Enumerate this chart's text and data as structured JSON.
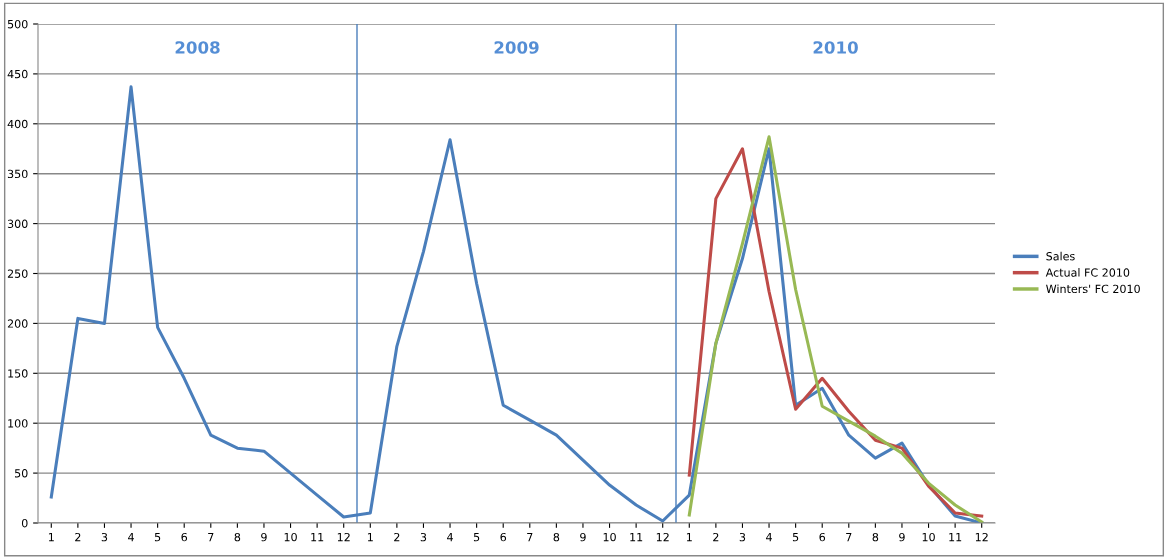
{
  "chart_data": {
    "type": "line",
    "categories": [
      "1",
      "2",
      "3",
      "4",
      "5",
      "6",
      "7",
      "8",
      "9",
      "10",
      "11",
      "12",
      "1",
      "2",
      "3",
      "4",
      "5",
      "6",
      "7",
      "8",
      "9",
      "10",
      "11",
      "12",
      "1",
      "2",
      "3",
      "4",
      "5",
      "6",
      "7",
      "8",
      "9",
      "10",
      "11",
      "12"
    ],
    "ylim": [
      0,
      500
    ],
    "yticks": [
      0,
      50,
      100,
      150,
      200,
      250,
      300,
      350,
      400,
      450,
      500
    ],
    "grid": "y",
    "legend": "right",
    "line_style": "solid",
    "marker": "none",
    "annotations": [
      "2008",
      "2009",
      "2010"
    ],
    "series": [
      {
        "name": "Sales",
        "color": "#4a7ebb",
        "values": [
          26,
          205,
          200,
          437,
          196,
          145,
          88,
          75,
          72,
          50,
          28,
          6,
          10,
          177,
          272,
          384,
          240,
          118,
          103,
          88,
          63,
          38,
          18,
          2,
          28,
          180,
          265,
          375,
          118,
          135,
          88,
          65,
          80,
          38,
          7,
          0
        ]
      },
      {
        "name": "Actual FC 2010",
        "color": "#be4b48",
        "values": [
          null,
          null,
          null,
          null,
          null,
          null,
          null,
          null,
          null,
          null,
          null,
          null,
          null,
          null,
          null,
          null,
          null,
          null,
          null,
          null,
          null,
          null,
          null,
          null,
          48,
          325,
          375,
          232,
          114,
          145,
          112,
          83,
          75,
          37,
          10,
          7
        ]
      },
      {
        "name": "Winters' FC 2010",
        "color": "#98b954",
        "values": [
          null,
          null,
          null,
          null,
          null,
          null,
          null,
          null,
          null,
          null,
          null,
          null,
          null,
          null,
          null,
          null,
          null,
          null,
          null,
          null,
          null,
          null,
          null,
          null,
          8,
          180,
          280,
          387,
          234,
          117,
          102,
          87,
          70,
          40,
          18,
          1
        ]
      }
    ]
  }
}
